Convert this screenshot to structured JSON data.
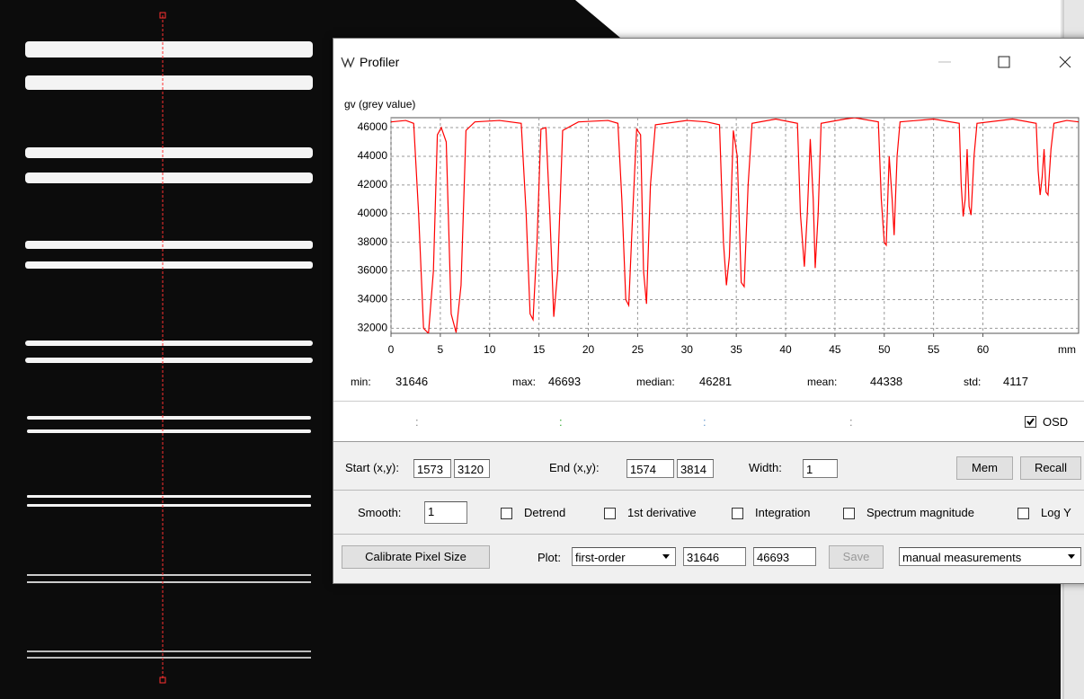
{
  "window": {
    "title": "Profiler"
  },
  "chart_data": {
    "type": "line",
    "y_label": "gv (grey value)",
    "x_unit": "mm",
    "xlim": [
      0,
      69.7
    ],
    "ylim": [
      31646,
      46693
    ],
    "xticks": [
      0,
      5,
      10,
      15,
      20,
      25,
      30,
      35,
      40,
      45,
      50,
      55,
      60
    ],
    "yticks": [
      32000,
      34000,
      36000,
      38000,
      40000,
      42000,
      44000,
      46000
    ],
    "grid": true,
    "series": [
      {
        "color": "#ff0000",
        "x": [
          0,
          1.5,
          2.3,
          2.8,
          3.3,
          3.8,
          4.3,
          4.7,
          5.1,
          5.6,
          6.1,
          6.6,
          7.1,
          7.6,
          8.5,
          11,
          13.2,
          13.7,
          14.1,
          14.4,
          14.8,
          15.2,
          15.7,
          16.1,
          16.5,
          16.9,
          17.4,
          19,
          22,
          23,
          23.4,
          23.8,
          24.1,
          24.5,
          24.9,
          25.3,
          25.6,
          25.9,
          26.3,
          26.8,
          30,
          32,
          33.3,
          33.7,
          34,
          34.3,
          34.7,
          35.1,
          35.5,
          35.8,
          36.2,
          36.6,
          39,
          41.2,
          41.5,
          41.9,
          42.2,
          42.5,
          42.8,
          43,
          43.3,
          43.6,
          46,
          47,
          49.4,
          49.7,
          50,
          50.2,
          50.5,
          50.8,
          51,
          51.3,
          51.6,
          55,
          57.6,
          57.8,
          58,
          58.2,
          58.4,
          58.6,
          58.8,
          59.1,
          59.4,
          63,
          65.4,
          65.6,
          65.8,
          66,
          66.2,
          66.4,
          66.6,
          66.9,
          67.2,
          68.5,
          69.7
        ],
        "values": [
          46400,
          46500,
          46300,
          40000,
          32000,
          31646,
          36000,
          45500,
          46000,
          45000,
          33000,
          31700,
          35000,
          45800,
          46400,
          46500,
          46300,
          40000,
          33000,
          32600,
          38000,
          45900,
          46000,
          40000,
          32800,
          36000,
          45800,
          46400,
          46500,
          46300,
          41000,
          34000,
          33600,
          40000,
          45900,
          45500,
          36000,
          33700,
          42000,
          46200,
          46500,
          46400,
          46200,
          38000,
          35000,
          37000,
          45800,
          44000,
          35200,
          34900,
          42000,
          46300,
          46600,
          46300,
          40000,
          36300,
          40000,
          45200,
          41000,
          36200,
          40000,
          46300,
          46600,
          46693,
          46400,
          41000,
          38000,
          37800,
          44000,
          41000,
          38500,
          44000,
          46400,
          46600,
          46300,
          42000,
          39800,
          41000,
          44500,
          40500,
          39900,
          44000,
          46300,
          46600,
          46300,
          43000,
          41300,
          42500,
          44500,
          41500,
          41300,
          44500,
          46300,
          46500,
          46400
        ]
      }
    ]
  },
  "stats": [
    {
      "label": "min:",
      "value": 31646
    },
    {
      "label": "max:",
      "value": 46693
    },
    {
      "label": "median:",
      "value": 46281
    },
    {
      "label": "mean:",
      "value": 44338
    },
    {
      "label": "std:",
      "value": 4117
    }
  ],
  "osd_fields": [
    ":",
    ":",
    ":",
    ":"
  ],
  "osd": {
    "label": "OSD",
    "checked": true
  },
  "controls": {
    "start_label": "Start (x,y):",
    "start_x": "1573",
    "start_y": "3120",
    "end_label": "End (x,y):",
    "end_x": "1574",
    "end_y": "3814",
    "width_label": "Width:",
    "width": "1",
    "mem": "Mem",
    "recall": "Recall",
    "smooth_label": "Smooth:",
    "smooth": "1",
    "options": [
      {
        "label": "Detrend",
        "checked": false
      },
      {
        "label": "1st derivative",
        "checked": false
      },
      {
        "label": "Integration",
        "checked": false
      },
      {
        "label": "Spectrum magnitude",
        "checked": false
      },
      {
        "label": "Log Y",
        "checked": false
      }
    ],
    "calibrate": "Calibrate Pixel Size",
    "plot_label": "Plot:",
    "plot_mode": "first-order",
    "save": "Save",
    "measurements": "manual measurements"
  }
}
